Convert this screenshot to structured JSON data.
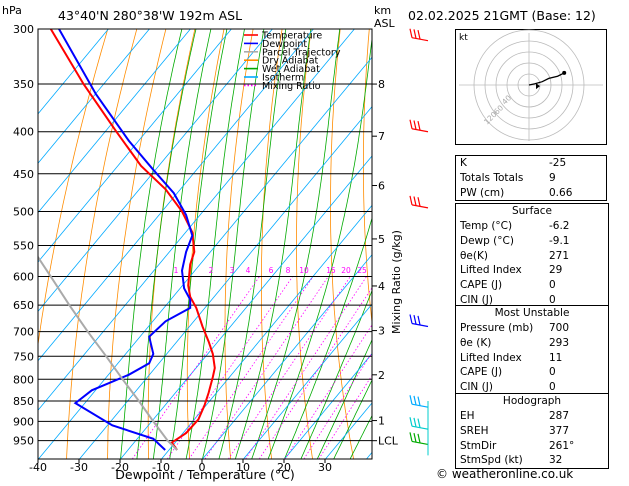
{
  "header": {
    "hpa_label": "hPa",
    "location": "43°40'N 280°38'W 192m ASL",
    "km_label": "km",
    "asl_label": "ASL",
    "datetime": "02.02.2025 21GMT (Base: 12)"
  },
  "chart_data": {
    "type": "line",
    "title": "",
    "xlabel": "Dewpoint / Temperature (°C)",
    "ylabel": "hPa",
    "right_label": "Mixing Ratio (g/kg)",
    "xlim": [
      -40,
      40
    ],
    "ylim_hpa": [
      1000,
      300
    ],
    "x_ticks": [
      "-40",
      "-30",
      "-20",
      "-10",
      "0",
      "10",
      "20",
      "30"
    ],
    "x_tick_values": [
      -40,
      -30,
      -20,
      -10,
      0,
      10,
      20,
      30
    ],
    "pressure_levels": [
      300,
      350,
      400,
      450,
      500,
      550,
      600,
      650,
      700,
      750,
      800,
      850,
      900,
      950
    ],
    "km_ticks": [
      {
        "label": "8",
        "p": 350
      },
      {
        "label": "7",
        "p": 405
      },
      {
        "label": "6",
        "p": 465
      },
      {
        "label": "5",
        "p": 540
      },
      {
        "label": "4",
        "p": 616
      },
      {
        "label": "3",
        "p": 698
      },
      {
        "label": "2",
        "p": 790
      },
      {
        "label": "1",
        "p": 898
      },
      {
        "label": "LCL",
        "p": 950
      }
    ],
    "mixing_ratio_labels": [
      "1",
      "2",
      "3",
      "4",
      "6",
      "8",
      "10",
      "15",
      "20",
      "25"
    ],
    "mixing_ratio_values": [
      1,
      2,
      3,
      4,
      6,
      8,
      10,
      15,
      20,
      25
    ],
    "legend": [
      {
        "name": "Temperature",
        "color": "#ff0000"
      },
      {
        "name": "Dewpoint",
        "color": "#0000ff"
      },
      {
        "name": "Parcel Trajectory",
        "color": "#aaaaaa"
      },
      {
        "name": "Dry Adiabat",
        "color": "#ff8c00"
      },
      {
        "name": "Wet Adiabat",
        "color": "#00aa00"
      },
      {
        "name": "Isotherm",
        "color": "#00aaff"
      },
      {
        "name": "Mixing Ratio",
        "color": "#ff00ff"
      }
    ],
    "series": [
      {
        "name": "Temperature",
        "color": "#ff0000",
        "points": [
          [
            -6.2,
            975
          ],
          [
            -7.5,
            955
          ],
          [
            -4,
            930
          ],
          [
            -1,
            895
          ],
          [
            0.5,
            860
          ],
          [
            1.5,
            830
          ],
          [
            2.5,
            795
          ],
          [
            3,
            775
          ],
          [
            2.5,
            745
          ],
          [
            1.5,
            720
          ],
          [
            0,
            690
          ],
          [
            -1.5,
            655
          ],
          [
            -3,
            635
          ],
          [
            -3.5,
            615
          ],
          [
            -3,
            580
          ],
          [
            -2,
            560
          ],
          [
            -2.5,
            530
          ],
          [
            -5,
            500
          ],
          [
            -9,
            470
          ],
          [
            -15,
            440
          ],
          [
            -21,
            400
          ],
          [
            -29,
            350
          ],
          [
            -37,
            300
          ]
        ]
      },
      {
        "name": "Dewpoint",
        "color": "#0000ff",
        "points": [
          [
            -9.1,
            975
          ],
          [
            -12,
            945
          ],
          [
            -22,
            910
          ],
          [
            -31,
            855
          ],
          [
            -27,
            825
          ],
          [
            -18,
            790
          ],
          [
            -13,
            765
          ],
          [
            -12,
            745
          ],
          [
            -13,
            710
          ],
          [
            -9,
            680
          ],
          [
            -3,
            655
          ],
          [
            -3,
            640
          ],
          [
            -4.5,
            620
          ],
          [
            -5,
            590
          ],
          [
            -4,
            560
          ],
          [
            -2.5,
            535
          ],
          [
            -4,
            505
          ],
          [
            -7,
            475
          ],
          [
            -12,
            445
          ],
          [
            -18,
            410
          ],
          [
            -26,
            360
          ],
          [
            -35,
            300
          ]
        ]
      },
      {
        "name": "Parcel Trajectory",
        "color": "#aaaaaa",
        "points": [
          [
            -6.2,
            975
          ],
          [
            -8.5,
            950
          ],
          [
            -12,
            900
          ],
          [
            -15.5,
            850
          ],
          [
            -19.5,
            800
          ],
          [
            -23.5,
            750
          ],
          [
            -28,
            700
          ],
          [
            -32.5,
            650
          ],
          [
            -37,
            600
          ],
          [
            -42,
            550
          ],
          [
            -47.5,
            500
          ],
          [
            -53.5,
            450
          ],
          [
            -60,
            400
          ],
          [
            -67,
            350
          ],
          [
            -75,
            300
          ]
        ]
      }
    ],
    "wind_barbs": [
      {
        "p": 310,
        "color": "#ff0000"
      },
      {
        "p": 400,
        "color": "#ff0000"
      },
      {
        "p": 495,
        "color": "#ff0000"
      },
      {
        "p": 690,
        "color": "#0000ff"
      },
      {
        "p": 865,
        "color": "#00aaff"
      },
      {
        "p": 920,
        "color": "#00cccc"
      },
      {
        "p": 960,
        "color": "#00aa00"
      }
    ]
  },
  "hodograph": {
    "label": "kt",
    "ring_labels": [
      "40",
      "60",
      "120"
    ],
    "trace": [
      [
        0,
        0
      ],
      [
        5,
        1
      ],
      [
        12,
        3
      ],
      [
        18,
        6
      ],
      [
        26,
        8
      ],
      [
        32,
        11
      ]
    ],
    "storm_motion": [
      10,
      -1
    ]
  },
  "indices": [
    {
      "label": "K",
      "value": "-25"
    },
    {
      "label": "Totals Totals",
      "value": "9"
    },
    {
      "label": "PW (cm)",
      "value": "0.66"
    }
  ],
  "surface": {
    "title": "Surface",
    "rows": [
      {
        "label": "Temp (°C)",
        "value": "-6.2"
      },
      {
        "label": "Dewp (°C)",
        "value": "-9.1"
      },
      {
        "label": "θe(K)",
        "value": "271"
      },
      {
        "label": "Lifted Index",
        "value": "29"
      },
      {
        "label": "CAPE (J)",
        "value": "0"
      },
      {
        "label": "CIN (J)",
        "value": "0"
      }
    ]
  },
  "most_unstable": {
    "title": "Most Unstable",
    "rows": [
      {
        "label": "Pressure (mb)",
        "value": "700"
      },
      {
        "label": "θe (K)",
        "value": "293"
      },
      {
        "label": "Lifted Index",
        "value": "11"
      },
      {
        "label": "CAPE (J)",
        "value": "0"
      },
      {
        "label": "CIN (J)",
        "value": "0"
      }
    ]
  },
  "hodograph_table": {
    "title": "Hodograph",
    "rows": [
      {
        "label": "EH",
        "value": "287"
      },
      {
        "label": "SREH",
        "value": "377"
      },
      {
        "label": "StmDir",
        "value": "261°"
      },
      {
        "label": "StmSpd (kt)",
        "value": "32"
      }
    ]
  },
  "footer": "© weatheronline.co.uk"
}
